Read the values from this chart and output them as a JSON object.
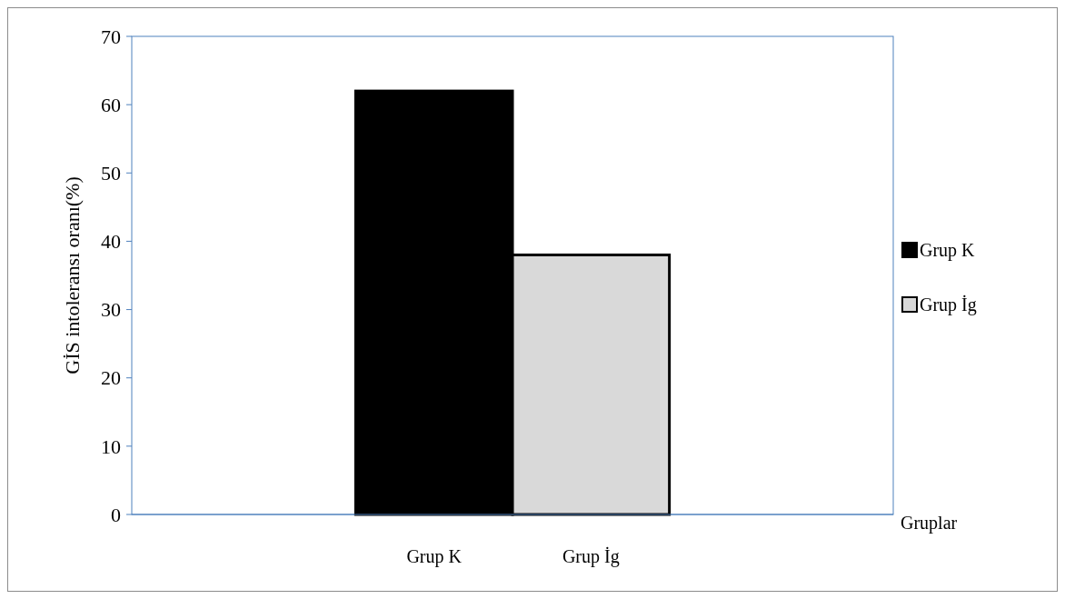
{
  "chart_data": {
    "type": "bar",
    "ylabel": "GİS intoleransı oranı(%)",
    "xlabel": "Gruplar",
    "categories": [
      "Grup K",
      "Grup İg"
    ],
    "series": [
      {
        "name": "Grup K",
        "color": "#000000",
        "values": [
          62,
          null
        ]
      },
      {
        "name": "Grup İg",
        "color": "#d9d9d9",
        "values": [
          null,
          38
        ]
      }
    ],
    "ylim": [
      0,
      70
    ],
    "yticks": [
      0,
      10,
      20,
      30,
      40,
      50,
      60,
      70
    ],
    "legend": "right"
  }
}
